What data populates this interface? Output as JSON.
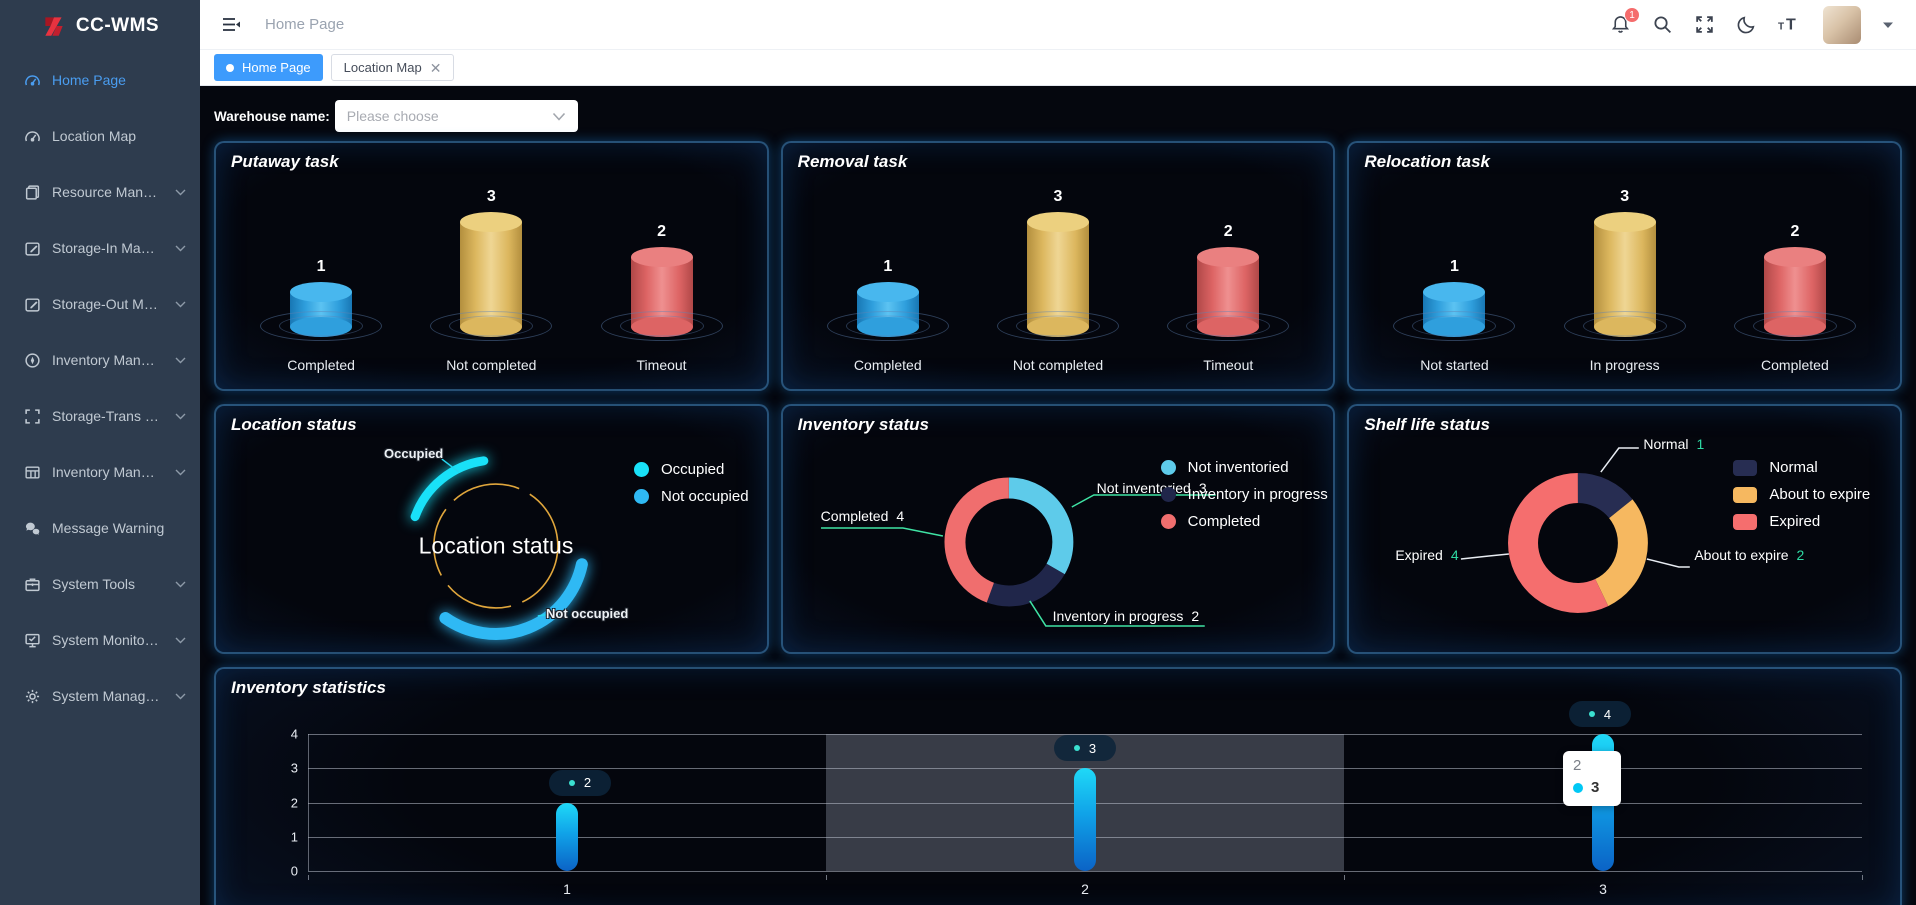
{
  "brand": {
    "name": "CC-WMS"
  },
  "sidebar": {
    "items": [
      {
        "label": "Home Page",
        "icon": "gauge",
        "active": true,
        "expandable": false
      },
      {
        "label": "Location Map",
        "icon": "gauge",
        "active": false,
        "expandable": false
      },
      {
        "label": "Resource Man…",
        "icon": "book",
        "active": false,
        "expandable": true
      },
      {
        "label": "Storage-In Ma…",
        "icon": "edit",
        "active": false,
        "expandable": true
      },
      {
        "label": "Storage-Out M…",
        "icon": "edit",
        "active": false,
        "expandable": true
      },
      {
        "label": "Inventory Man…",
        "icon": "compass",
        "active": false,
        "expandable": true
      },
      {
        "label": "Storage-Trans …",
        "icon": "expand",
        "active": false,
        "expandable": true
      },
      {
        "label": "Inventory Man…",
        "icon": "table",
        "active": false,
        "expandable": true
      },
      {
        "label": "Message Warning",
        "icon": "chat",
        "active": false,
        "expandable": false
      },
      {
        "label": "System Tools",
        "icon": "briefcase",
        "active": false,
        "expandable": true
      },
      {
        "label": "System Monito…",
        "icon": "monitor",
        "active": false,
        "expandable": true
      },
      {
        "label": "System Manag…",
        "icon": "gear",
        "active": false,
        "expandable": true
      }
    ]
  },
  "header": {
    "breadcrumb": "Home Page",
    "notification_badge": "1"
  },
  "tabs": [
    {
      "label": "Home Page",
      "active": true,
      "closable": false
    },
    {
      "label": "Location Map",
      "active": false,
      "closable": true
    }
  ],
  "filter": {
    "label": "Warehouse name:",
    "placeholder": "Please choose"
  },
  "colors": {
    "accent_blue": "#3d9bfc",
    "cylinder_blue": "#2f9fdd",
    "cylinder_gold": "#dcb75e",
    "cylinder_red": "#dd6464",
    "bar_gradient_top": "#1fd9f7",
    "bar_gradient_bottom": "#0b63c6",
    "leader_green": "#3fe3a4",
    "value_teal": "#2ed9a3"
  },
  "chart_data": {
    "putaway": {
      "type": "bar",
      "variant": "cylinder",
      "title": "Putaway task",
      "categories": [
        "Completed",
        "Not completed",
        "Timeout"
      ],
      "values": [
        1,
        3,
        2
      ],
      "colors": [
        "blue",
        "gold",
        "red"
      ]
    },
    "removal": {
      "type": "bar",
      "variant": "cylinder",
      "title": "Removal task",
      "categories": [
        "Completed",
        "Not completed",
        "Timeout"
      ],
      "values": [
        1,
        3,
        2
      ],
      "colors": [
        "blue",
        "gold",
        "red"
      ]
    },
    "relocation": {
      "type": "bar",
      "variant": "cylinder",
      "title": "Relocation task",
      "categories": [
        "Not started",
        "In progress",
        "Completed"
      ],
      "values": [
        1,
        3,
        2
      ],
      "colors": [
        "blue",
        "gold",
        "red"
      ]
    },
    "location_status": {
      "type": "pie",
      "title": "Location status",
      "center_label": "Location status",
      "segments": [
        {
          "label": "Occupied",
          "color": "#19e1f8"
        },
        {
          "label": "Not occupied",
          "color": "#2fb9f4"
        }
      ]
    },
    "inventory_status": {
      "type": "pie",
      "title": "Inventory status",
      "slices": [
        {
          "label": "Not inventoried",
          "value": 3,
          "color": "#5ecbea"
        },
        {
          "label": "Inventory in progress",
          "value": 2,
          "color": "#20264a"
        },
        {
          "label": "Completed",
          "value": 4,
          "color": "#f06e6e"
        }
      ]
    },
    "shelf_life": {
      "type": "pie",
      "title": "Shelf life status",
      "slices": [
        {
          "label": "Normal",
          "value": 1,
          "color": "#272d52"
        },
        {
          "label": "About to expire",
          "value": 2,
          "color": "#f6b860"
        },
        {
          "label": "Expired",
          "value": 4,
          "color": "#f56e6e"
        }
      ]
    },
    "inventory_statistics": {
      "type": "bar",
      "title": "Inventory statistics",
      "categories": [
        "1",
        "2",
        "3"
      ],
      "values": [
        2,
        3,
        4
      ],
      "point_labels": [
        "2",
        "3",
        "4"
      ],
      "yticks": [
        0,
        1,
        2,
        3,
        4
      ],
      "ylim": [
        0,
        4
      ],
      "highlight_category_index": 1,
      "tooltip": {
        "category": "2",
        "value": "3"
      }
    }
  }
}
